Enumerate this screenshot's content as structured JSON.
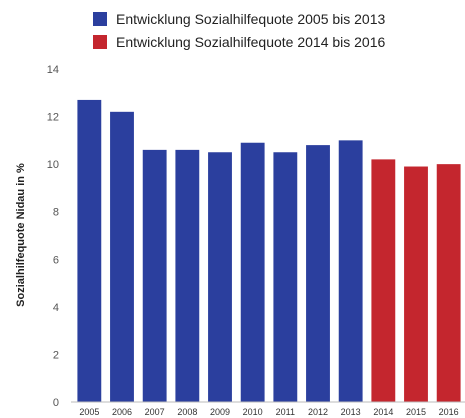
{
  "chart_data": {
    "type": "bar",
    "categories": [
      "2005",
      "2006",
      "2007",
      "2008",
      "2009",
      "2010",
      "2011",
      "2012",
      "2013",
      "2014",
      "2015",
      "2016"
    ],
    "series": [
      {
        "name": "Entwicklung Sozialhilfequote 2005 bis 2013",
        "color": "#2b3f9e",
        "values": [
          12.7,
          12.2,
          10.6,
          10.6,
          10.5,
          10.9,
          10.5,
          10.8,
          11.0,
          null,
          null,
          null
        ]
      },
      {
        "name": "Entwicklung Sozialhilfequote 2014 bis 2016",
        "color": "#c4262e",
        "values": [
          null,
          null,
          null,
          null,
          null,
          null,
          null,
          null,
          null,
          10.2,
          9.9,
          10.0
        ]
      }
    ],
    "ylabel": "Sozialhilfequote Nidau in %",
    "xlabel": "",
    "ylim": [
      0,
      14
    ],
    "yticks": [
      0,
      2,
      4,
      6,
      8,
      10,
      12,
      14
    ],
    "grid": false,
    "legend": "top"
  }
}
